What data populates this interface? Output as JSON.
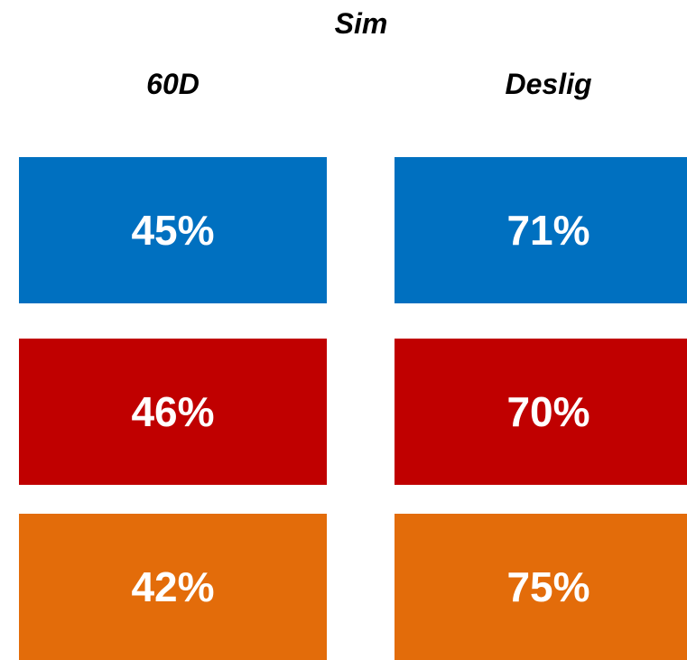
{
  "title": "Sim",
  "columns": [
    "60D",
    "Deslig"
  ],
  "rows": [
    {
      "color": "#0070C0",
      "values": [
        "45%",
        "71%"
      ]
    },
    {
      "color": "#C00000",
      "values": [
        "46%",
        "70%"
      ]
    },
    {
      "color": "#E36C0A",
      "values": [
        "42%",
        "75%"
      ]
    }
  ]
}
